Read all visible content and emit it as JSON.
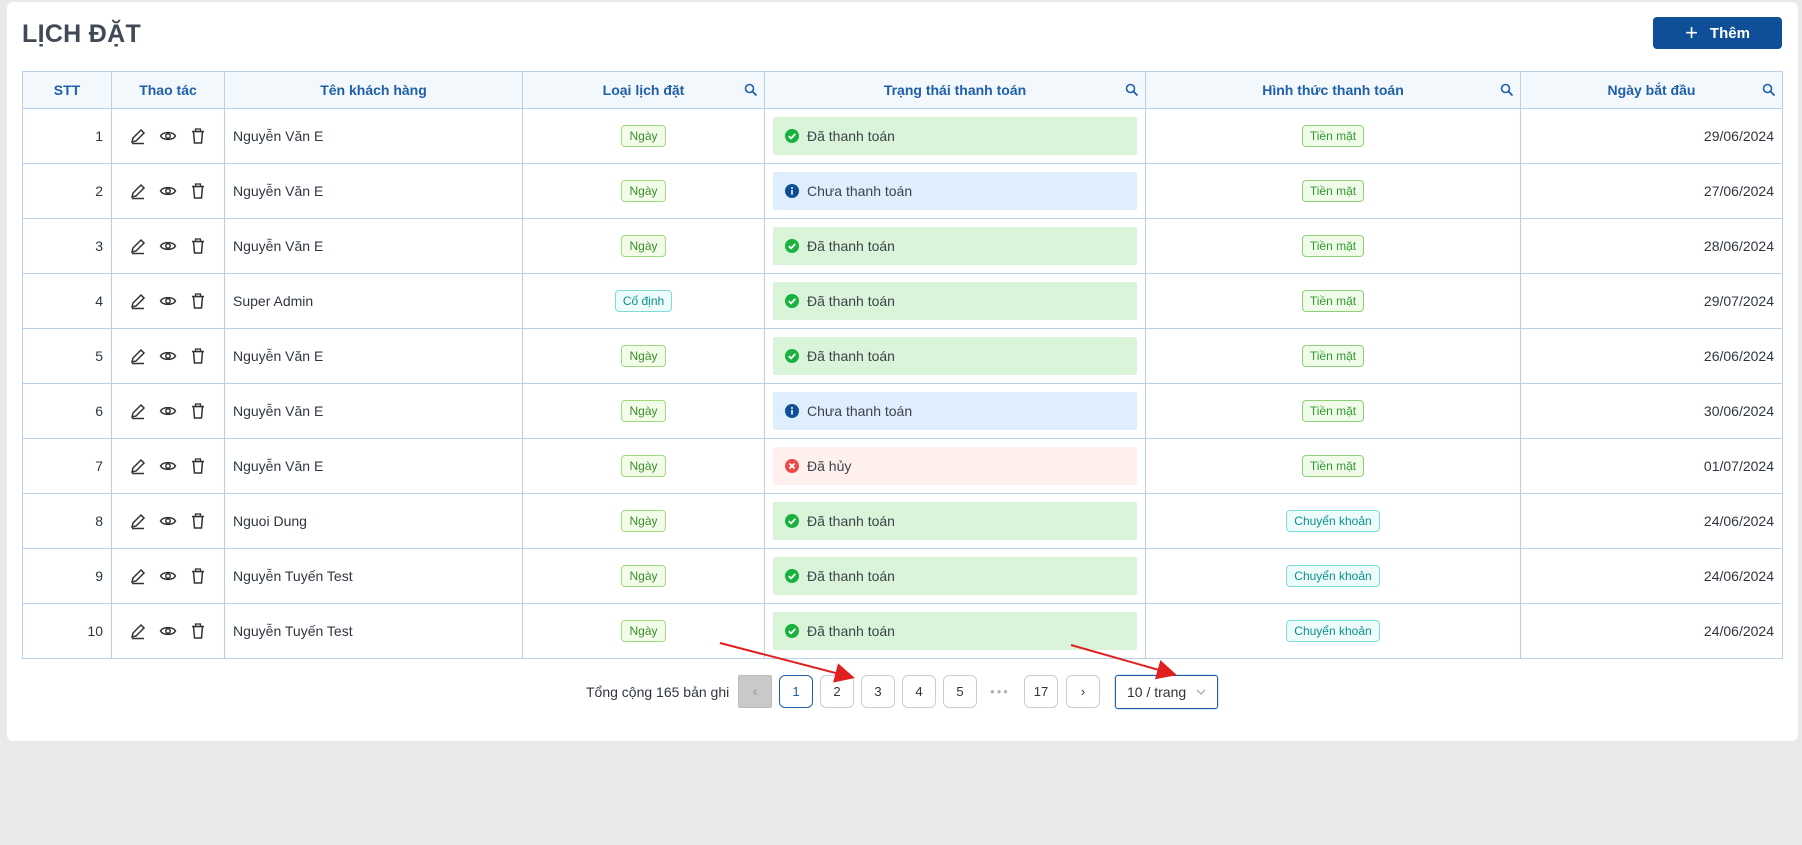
{
  "page": {
    "title": "LỊCH ĐẶT"
  },
  "toolbar": {
    "add_label": "Thêm"
  },
  "table": {
    "headers": {
      "stt": "STT",
      "actions": "Thao tác",
      "customer": "Tên khách hàng",
      "booking_type": "Loại lịch đặt",
      "payment_status": "Trạng thái thanh toán",
      "payment_method": "Hình thức thanh toán",
      "start_date": "Ngày bắt đầu"
    },
    "rows": [
      {
        "stt": "1",
        "customer": "Nguyễn Văn E",
        "type": "Ngày",
        "status": "Đã thanh toán",
        "method": "Tiền mặt",
        "date": "29/06/2024"
      },
      {
        "stt": "2",
        "customer": "Nguyễn Văn E",
        "type": "Ngày",
        "status": "Chưa thanh toán",
        "method": "Tiền mặt",
        "date": "27/06/2024"
      },
      {
        "stt": "3",
        "customer": "Nguyễn Văn E",
        "type": "Ngày",
        "status": "Đã thanh toán",
        "method": "Tiền mặt",
        "date": "28/06/2024"
      },
      {
        "stt": "4",
        "customer": "Super Admin",
        "type": "Cố định",
        "status": "Đã thanh toán",
        "method": "Tiền mặt",
        "date": "29/07/2024"
      },
      {
        "stt": "5",
        "customer": "Nguyễn Văn E",
        "type": "Ngày",
        "status": "Đã thanh toán",
        "method": "Tiền mặt",
        "date": "26/06/2024"
      },
      {
        "stt": "6",
        "customer": "Nguyễn Văn E",
        "type": "Ngày",
        "status": "Chưa thanh toán",
        "method": "Tiền mặt",
        "date": "30/06/2024"
      },
      {
        "stt": "7",
        "customer": "Nguyễn Văn E",
        "type": "Ngày",
        "status": "Đã hủy",
        "method": "Tiền mặt",
        "date": "01/07/2024"
      },
      {
        "stt": "8",
        "customer": "Nguoi Dung",
        "type": "Ngày",
        "status": "Đã thanh toán",
        "method": "Chuyển khoản",
        "date": "24/06/2024"
      },
      {
        "stt": "9",
        "customer": "Nguyễn Tuyến Test",
        "type": "Ngày",
        "status": "Đã thanh toán",
        "method": "Chuyển khoản",
        "date": "24/06/2024"
      },
      {
        "stt": "10",
        "customer": "Nguyễn Tuyến Test",
        "type": "Ngày",
        "status": "Đã thanh toán",
        "method": "Chuyển khoản",
        "date": "24/06/2024"
      }
    ]
  },
  "pagination": {
    "total_text": "Tổng cộng 165 bản ghi",
    "pages": [
      "1",
      "2",
      "3",
      "4",
      "5"
    ],
    "ellipsis": "•••",
    "last_page": "17",
    "current": "1",
    "page_size": "10 / trang"
  },
  "colors": {
    "primary": "#0e4f97",
    "paid_bg": "#d9f4d9",
    "unpaid_bg": "#dfeefd",
    "cancel_bg": "#fff0ee",
    "annotation_arrow": "#e02020"
  },
  "icons": {
    "edit": "pencil-icon",
    "view": "eye-icon",
    "delete": "trash-icon",
    "column_search": "search-icon",
    "paid": "check-circle-icon",
    "unpaid": "info-circle-icon",
    "cancelled": "close-circle-icon"
  }
}
